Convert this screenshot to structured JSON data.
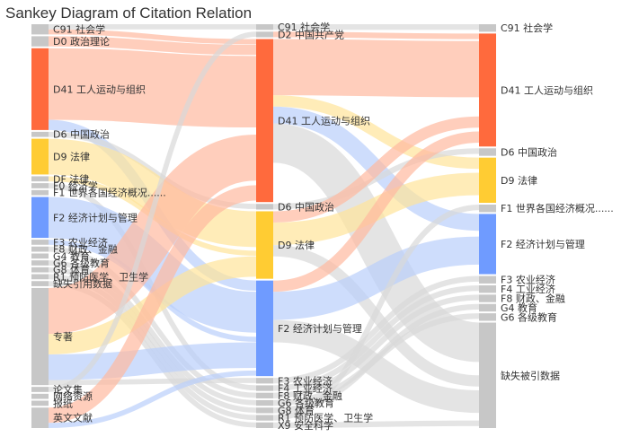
{
  "title": "Sankey Diagram of Citation Relation",
  "colors": {
    "red": "#ff6a3d",
    "yellow": "#ffcc33",
    "blue": "#6f9bff",
    "gray": "#c7c7c7",
    "red_link": "#ffb9a0",
    "yellow_link": "#ffe49a",
    "blue_link": "#b9cffb",
    "gray_link": "#d8d8d8"
  },
  "columns": [
    {
      "nodes": [
        {
          "id": "L-C91",
          "label": "C91 社会学",
          "color": "gray"
        },
        {
          "id": "L-D0",
          "label": "D0 政治理论",
          "color": "gray"
        },
        {
          "id": "L-D41",
          "label": "D41 工人运动与组织",
          "color": "red"
        },
        {
          "id": "L-D6",
          "label": "D6 中国政治",
          "color": "gray"
        },
        {
          "id": "L-D9",
          "label": "D9 法律",
          "color": "yellow"
        },
        {
          "id": "L-DF",
          "label": "DF 法律",
          "color": "gray"
        },
        {
          "id": "L-F0",
          "label": "F0 经济学",
          "color": "gray"
        },
        {
          "id": "L-F1",
          "label": "F1 世界各国经济概况......",
          "color": "gray"
        },
        {
          "id": "L-F2",
          "label": "F2 经济计划与管理",
          "color": "blue"
        },
        {
          "id": "L-F3",
          "label": "F3 农业经济",
          "color": "gray"
        },
        {
          "id": "L-F8",
          "label": "F8 财政、金融",
          "color": "gray"
        },
        {
          "id": "L-G4",
          "label": "G4 教育",
          "color": "gray"
        },
        {
          "id": "L-G6",
          "label": "G6 各级教育",
          "color": "gray"
        },
        {
          "id": "L-G8",
          "label": "G8 体育",
          "color": "gray"
        },
        {
          "id": "L-R1",
          "label": "R1 预防医学、卫生学",
          "color": "gray"
        },
        {
          "id": "L-MISS",
          "label": "缺失引用数据",
          "color": "gray"
        },
        {
          "id": "L-ZZ",
          "label": "专著",
          "color": "gray"
        },
        {
          "id": "L-LWJ",
          "label": "论文集",
          "color": "gray"
        },
        {
          "id": "L-WL",
          "label": "网络资源",
          "color": "gray"
        },
        {
          "id": "L-BZ",
          "label": "报纸",
          "color": "gray"
        },
        {
          "id": "L-YW",
          "label": "英文文献",
          "color": "gray"
        }
      ]
    },
    {
      "nodes": [
        {
          "id": "M-C91",
          "label": "C91 社会学",
          "color": "gray"
        },
        {
          "id": "M-D2",
          "label": "D2 中国共产党",
          "color": "gray"
        },
        {
          "id": "M-D41",
          "label": "D41 工人运动与组织",
          "color": "red"
        },
        {
          "id": "M-D6",
          "label": "D6 中国政治",
          "color": "gray"
        },
        {
          "id": "M-D9",
          "label": "D9 法律",
          "color": "yellow"
        },
        {
          "id": "M-F2",
          "label": "F2 经济计划与管理",
          "color": "blue"
        },
        {
          "id": "M-F3",
          "label": "F3 农业经济",
          "color": "gray"
        },
        {
          "id": "M-F4",
          "label": "F4 工业经济",
          "color": "gray"
        },
        {
          "id": "M-F8",
          "label": "F8 财政、金融",
          "color": "gray"
        },
        {
          "id": "M-G6",
          "label": "G6 各级教育",
          "color": "gray"
        },
        {
          "id": "M-G8",
          "label": "G8 体育",
          "color": "gray"
        },
        {
          "id": "M-R1",
          "label": "R1 预防医学、卫生学",
          "color": "gray"
        },
        {
          "id": "M-X9",
          "label": "X9 安全科学",
          "color": "gray"
        }
      ]
    },
    {
      "nodes": [
        {
          "id": "R-C91",
          "label": "C91 社会学",
          "color": "gray"
        },
        {
          "id": "R-D41",
          "label": "D41 工人运动与组织",
          "color": "red"
        },
        {
          "id": "R-D6",
          "label": "D6 中国政治",
          "color": "gray"
        },
        {
          "id": "R-D9",
          "label": "D9 法律",
          "color": "yellow"
        },
        {
          "id": "R-F1",
          "label": "F1 世界各国经济概况......",
          "color": "gray"
        },
        {
          "id": "R-F2",
          "label": "F2 经济计划与管理",
          "color": "blue"
        },
        {
          "id": "R-F3",
          "label": "F3 农业经济",
          "color": "gray"
        },
        {
          "id": "R-F4",
          "label": "F4 工业经济",
          "color": "gray"
        },
        {
          "id": "R-F8",
          "label": "F8 财政、金融",
          "color": "gray"
        },
        {
          "id": "R-G4",
          "label": "G4 教育",
          "color": "gray"
        },
        {
          "id": "R-G6",
          "label": "G6 各级教育",
          "color": "gray"
        },
        {
          "id": "R-MISS",
          "label": "缺失被引数据",
          "color": "gray"
        }
      ]
    }
  ],
  "links": [
    {
      "source": "L-D41",
      "target": "M-D41",
      "value": 14,
      "color": "red_link"
    },
    {
      "source": "L-ZZ",
      "target": "M-D41",
      "value": 9,
      "color": "red_link"
    },
    {
      "source": "L-YW",
      "target": "M-D41",
      "value": 3,
      "color": "red_link"
    },
    {
      "source": "L-D0",
      "target": "M-D41",
      "value": 2,
      "color": "red_link"
    },
    {
      "source": "L-C91",
      "target": "M-D41",
      "value": 1,
      "color": "red_link"
    },
    {
      "source": "L-D9",
      "target": "M-D9",
      "value": 7,
      "color": "yellow_link"
    },
    {
      "source": "L-ZZ",
      "target": "M-D9",
      "value": 4,
      "color": "yellow_link"
    },
    {
      "source": "L-DF",
      "target": "M-D9",
      "value": 1,
      "color": "yellow_link"
    },
    {
      "source": "L-F2",
      "target": "M-F2",
      "value": 8,
      "color": "blue_link"
    },
    {
      "source": "L-ZZ",
      "target": "M-F2",
      "value": 5,
      "color": "blue_link"
    },
    {
      "source": "L-D41",
      "target": "M-F2",
      "value": 2,
      "color": "blue_link"
    },
    {
      "source": "L-F3",
      "target": "M-F2",
      "value": 1,
      "color": "blue_link"
    },
    {
      "source": "L-YW",
      "target": "M-F2",
      "value": 1,
      "color": "blue_link"
    },
    {
      "source": "L-D6",
      "target": "M-D6",
      "value": 1,
      "color": "gray_link"
    },
    {
      "source": "L-C91",
      "target": "M-C91",
      "value": 1,
      "color": "gray_link"
    },
    {
      "source": "L-F8",
      "target": "M-F8",
      "value": 1,
      "color": "gray_link"
    },
    {
      "source": "L-G6",
      "target": "M-G6",
      "value": 1,
      "color": "gray_link"
    },
    {
      "source": "L-G8",
      "target": "M-G8",
      "value": 1,
      "color": "gray_link"
    },
    {
      "source": "L-R1",
      "target": "M-R1",
      "value": 1,
      "color": "gray_link"
    },
    {
      "source": "L-ZZ",
      "target": "M-F3",
      "value": 1,
      "color": "gray_link"
    },
    {
      "source": "L-F0",
      "target": "M-F4",
      "value": 1,
      "color": "gray_link"
    },
    {
      "source": "L-MISS",
      "target": "M-X9",
      "value": 1,
      "color": "gray_link"
    },
    {
      "source": "L-LWJ",
      "target": "M-D2",
      "value": 1,
      "color": "gray_link"
    },
    {
      "source": "M-D41",
      "target": "R-D41",
      "value": 10,
      "color": "red_link"
    },
    {
      "source": "M-D41",
      "target": "R-F2",
      "value": 3,
      "color": "blue_link"
    },
    {
      "source": "M-D41",
      "target": "R-MISS",
      "value": 7,
      "color": "gray_link"
    },
    {
      "source": "M-D41",
      "target": "R-D9",
      "value": 2,
      "color": "yellow_link"
    },
    {
      "source": "M-D9",
      "target": "R-D9",
      "value": 4,
      "color": "yellow_link"
    },
    {
      "source": "M-D9",
      "target": "R-D41",
      "value": 2,
      "color": "red_link"
    },
    {
      "source": "M-D9",
      "target": "R-MISS",
      "value": 2,
      "color": "gray_link"
    },
    {
      "source": "M-F2",
      "target": "R-F2",
      "value": 5,
      "color": "blue_link"
    },
    {
      "source": "M-F2",
      "target": "R-MISS",
      "value": 4,
      "color": "gray_link"
    },
    {
      "source": "M-F2",
      "target": "R-D41",
      "value": 2,
      "color": "red_link"
    },
    {
      "source": "M-D2",
      "target": "R-D41",
      "value": 1,
      "color": "red_link"
    },
    {
      "source": "M-C91",
      "target": "R-C91",
      "value": 1,
      "color": "gray_link"
    },
    {
      "source": "M-D6",
      "target": "R-D6",
      "value": 1,
      "color": "gray_link"
    },
    {
      "source": "M-F3",
      "target": "R-F3",
      "value": 1,
      "color": "gray_link"
    },
    {
      "source": "M-F4",
      "target": "R-F4",
      "value": 1,
      "color": "gray_link"
    },
    {
      "source": "M-F8",
      "target": "R-F8",
      "value": 1,
      "color": "gray_link"
    },
    {
      "source": "M-G6",
      "target": "R-G6",
      "value": 1,
      "color": "gray_link"
    },
    {
      "source": "M-G8",
      "target": "R-G4",
      "value": 1,
      "color": "gray_link"
    },
    {
      "source": "M-R1",
      "target": "R-F1",
      "value": 1,
      "color": "gray_link"
    },
    {
      "source": "M-X9",
      "target": "R-MISS",
      "value": 1,
      "color": "gray_link"
    }
  ]
}
